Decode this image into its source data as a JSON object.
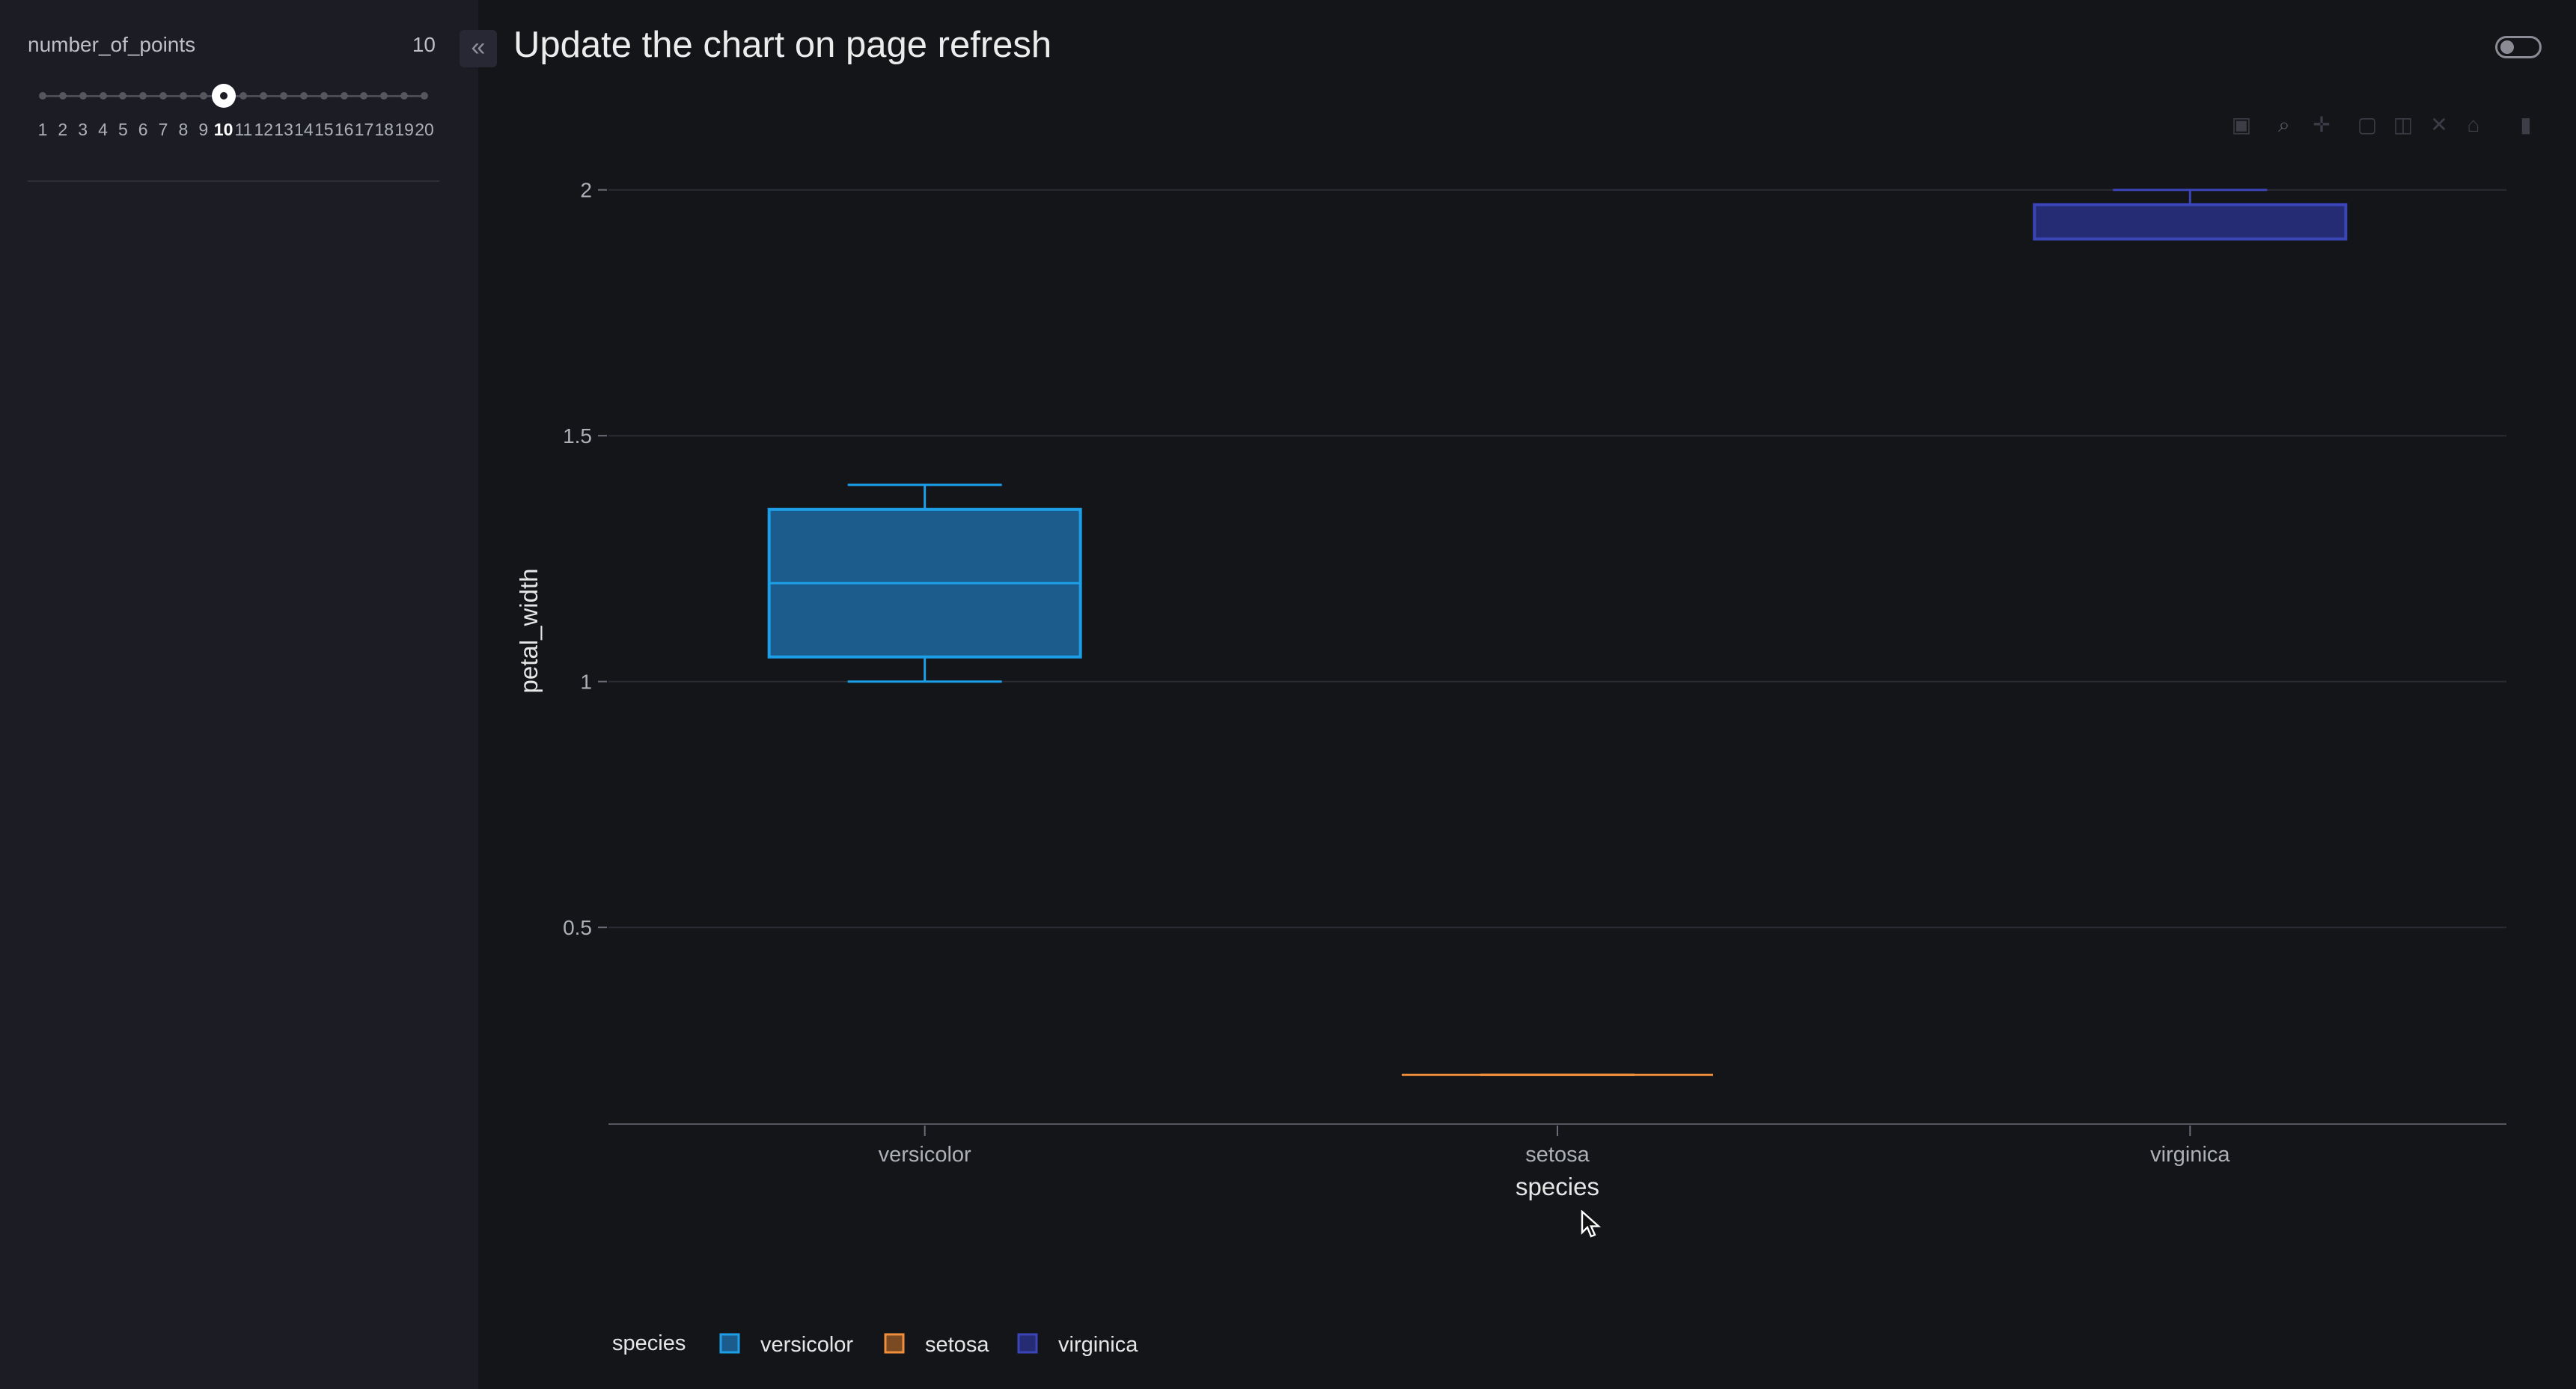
{
  "sidebar": {
    "slider": {
      "label": "number_of_points",
      "value": "10",
      "min": 1,
      "max": 20,
      "selected": 10,
      "tick_labels": [
        "1",
        "2",
        "3",
        "4",
        "5",
        "6",
        "7",
        "8",
        "9",
        "10",
        "11",
        "12",
        "13",
        "14",
        "15",
        "16",
        "17",
        "18",
        "19",
        "20"
      ]
    }
  },
  "header": {
    "title": "Update the chart on page refresh",
    "collapse_icon": "double-chevron-left-icon",
    "theme_toggle": "off"
  },
  "modebar": {
    "icons": [
      "camera-icon",
      "zoom-icon",
      "pan-icon",
      "box-select-icon",
      "lasso-icon",
      "zoom-in-icon",
      "zoom-out-icon",
      "autoscale-icon",
      "plotly-logo-icon"
    ]
  },
  "chart_data": {
    "type": "box",
    "xlabel": "species",
    "ylabel": "petal_width",
    "ylim": [
      0.1,
      2.1
    ],
    "yticks": [
      0.5,
      1,
      1.5,
      2
    ],
    "ytick_labels": [
      "0.5",
      "1",
      "1.5",
      "2"
    ],
    "categories": [
      "versicolor",
      "setosa",
      "virginica"
    ],
    "grid": true,
    "legend": {
      "title": "species",
      "placement": "bottom-left",
      "entries": [
        "versicolor",
        "setosa",
        "virginica"
      ]
    },
    "series": [
      {
        "name": "versicolor",
        "color": "#1c9fe8",
        "fill": "#1c5c8c",
        "min": 1.0,
        "q1": 1.05,
        "median": 1.2,
        "q3": 1.35,
        "max": 1.4
      },
      {
        "name": "setosa",
        "color": "#ef8e3b",
        "fill": "#7a4a22",
        "min": 0.2,
        "q1": 0.2,
        "median": 0.2,
        "q3": 0.2,
        "max": 0.2
      },
      {
        "name": "virginica",
        "color": "#3a45b8",
        "fill": "#252c74",
        "min": 1.9,
        "q1": 1.9,
        "median": 1.97,
        "q3": 1.97,
        "max": 2.0
      }
    ]
  }
}
